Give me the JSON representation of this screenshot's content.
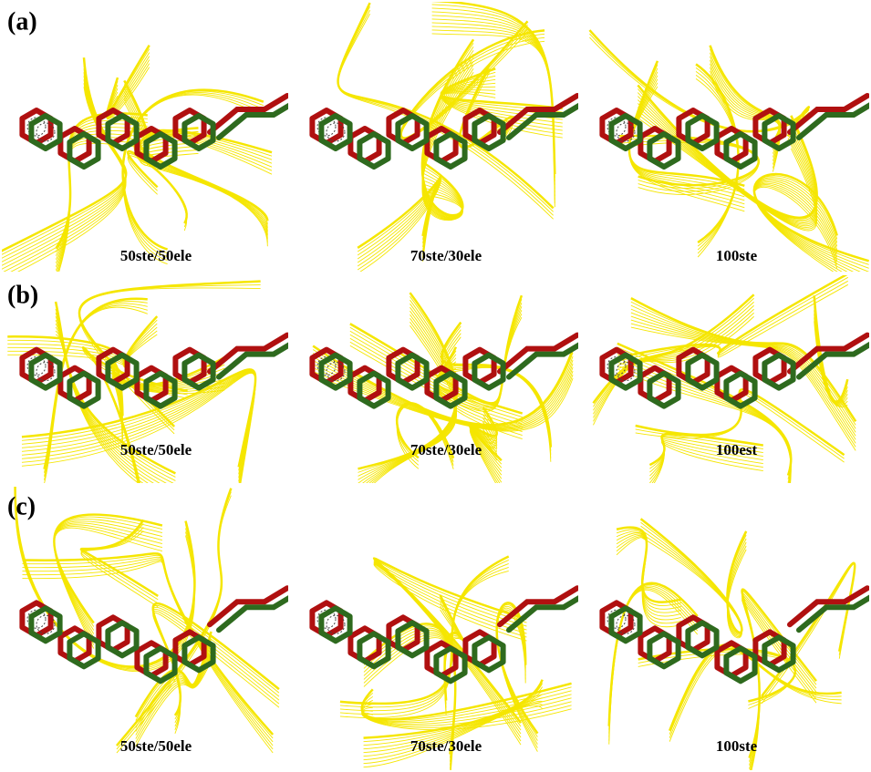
{
  "rows": [
    {
      "label": "(a)",
      "captions": [
        "50ste/50ele",
        "70ste/30ele",
        "100ste"
      ]
    },
    {
      "label": "(b)",
      "captions": [
        "50ste/50ele",
        "70ste/30ele",
        "100est"
      ]
    },
    {
      "label": "(c)",
      "captions": [
        "50ste/50ele",
        "70ste/30ele",
        "100ste"
      ]
    }
  ]
}
